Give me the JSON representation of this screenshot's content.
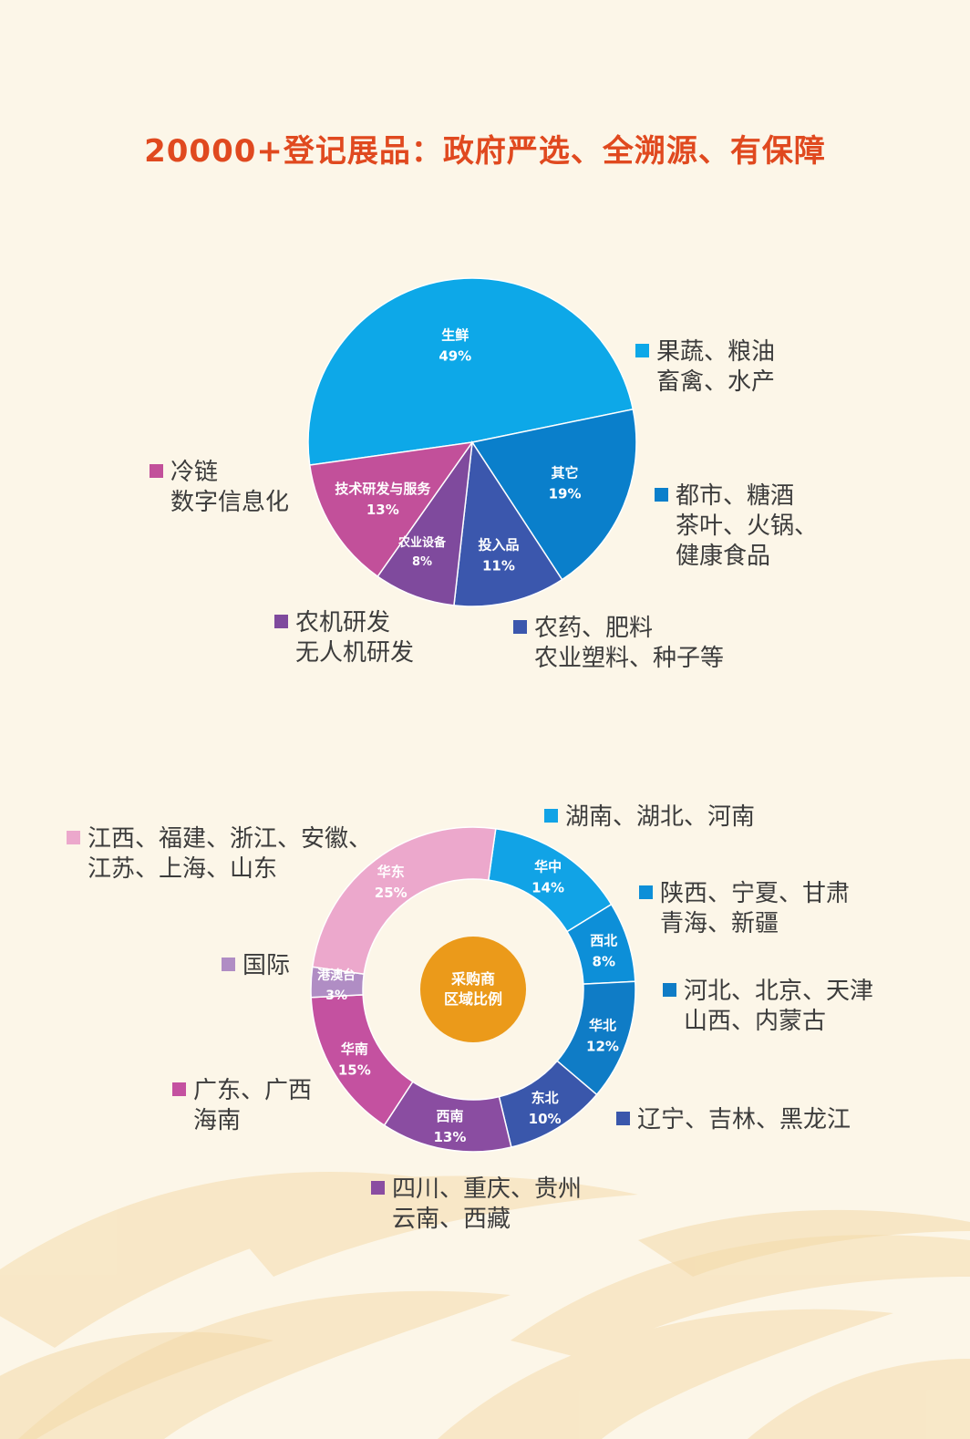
{
  "title": "20000+登记展品：政府严选、全溯源、有保障",
  "colors": {
    "title": "#e0491f",
    "background": "#fcf6e8",
    "center_circle": "#eb9a1a"
  },
  "chart_data": [
    {
      "type": "pie",
      "slices": [
        {
          "label": "生鲜",
          "value": 49,
          "pct": "49%",
          "color": "#0da8e8",
          "legend": [
            "果蔬、粮油",
            "畜禽、水产"
          ]
        },
        {
          "label": "其它",
          "value": 19,
          "pct": "19%",
          "color": "#0a7fcb",
          "legend": [
            "都市、糖酒",
            "茶叶、火锅、",
            "健康食品"
          ]
        },
        {
          "label": "投入品",
          "value": 11,
          "pct": "11%",
          "color": "#3b57ad",
          "legend": [
            "农药、肥料",
            "农业塑料、种子等"
          ]
        },
        {
          "label": "农业设备",
          "value": 8,
          "pct": "8%",
          "color": "#7f4a9d",
          "legend": [
            "农机研发",
            "无人机研发"
          ]
        },
        {
          "label": "技术研发与服务",
          "value": 13,
          "pct": "13%",
          "color": "#c2509a",
          "legend": [
            "冷链",
            "数字信息化"
          ]
        }
      ]
    },
    {
      "type": "pie",
      "variant": "donut",
      "center_label": [
        "采购商",
        "区域比例"
      ],
      "slices": [
        {
          "label": "华中",
          "value": 14,
          "pct": "14%",
          "color": "#11a3e6",
          "legend": [
            "湖南、湖北、河南"
          ]
        },
        {
          "label": "西北",
          "value": 8,
          "pct": "8%",
          "color": "#0d8fd8",
          "legend": [
            "陕西、宁夏、甘肃",
            "青海、新疆"
          ]
        },
        {
          "label": "华北",
          "value": 12,
          "pct": "12%",
          "color": "#0f7cc6",
          "legend": [
            "河北、北京、天津",
            "山西、内蒙古"
          ]
        },
        {
          "label": "东北",
          "value": 10,
          "pct": "10%",
          "color": "#3a57ab",
          "legend": [
            "辽宁、吉林、黑龙江"
          ]
        },
        {
          "label": "西南",
          "value": 13,
          "pct": "13%",
          "color": "#8a4da1",
          "legend": [
            "四川、重庆、贵州",
            "云南、西藏"
          ]
        },
        {
          "label": "华南",
          "value": 15,
          "pct": "15%",
          "color": "#c451a0",
          "legend": [
            "广东、广西",
            "海南"
          ]
        },
        {
          "label": "港澳台",
          "value": 3,
          "pct": "3%",
          "color": "#b08dc4",
          "legend": [
            "国际"
          ]
        },
        {
          "label": "华东",
          "value": 25,
          "pct": "25%",
          "color": "#eca8cc",
          "legend": [
            "江西、福建、浙江、安徽、",
            "江苏、上海、山东"
          ]
        }
      ]
    }
  ]
}
